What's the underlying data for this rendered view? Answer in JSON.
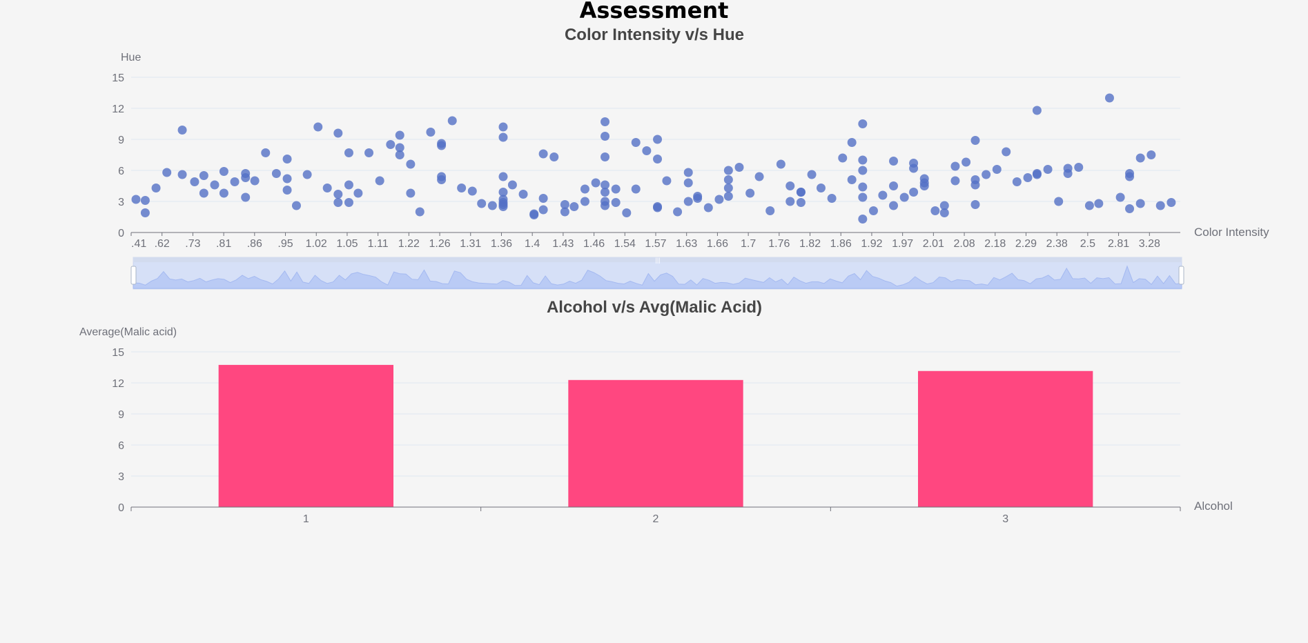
{
  "page": {
    "title": "Assessment"
  },
  "colors": {
    "scatter": "#5470c6",
    "bar": "#ff4780",
    "axis": "#6e7079",
    "grid": "#e0e6f1",
    "title": "#464646"
  },
  "chart_data": [
    {
      "type": "scatter",
      "title": "Color Intensity v/s Hue",
      "xlabel": "Color Intensity",
      "ylabel": "Hue",
      "ylim": [
        0,
        15
      ],
      "yticks": [
        "0",
        "3",
        "6",
        "9",
        "12",
        "15"
      ],
      "x_axis_type": "category",
      "x_tick_labels": [
        ".41",
        ".62",
        ".73",
        ".81",
        ".86",
        ".95",
        "1.02",
        "1.05",
        "1.11",
        "1.22",
        "1.26",
        "1.31",
        "1.36",
        "1.4",
        "1.43",
        "1.46",
        "1.54",
        "1.57",
        "1.63",
        "1.66",
        "1.7",
        "1.76",
        "1.82",
        "1.86",
        "1.92",
        "1.97",
        "2.01",
        "2.08",
        "2.18",
        "2.29",
        "2.38",
        "2.5",
        "2.81",
        "3.28"
      ],
      "grid": true,
      "data_zoom": {
        "start": 0,
        "end": 100
      },
      "points": [
        [
          0.0,
          3.2
        ],
        [
          0.3,
          3.1
        ],
        [
          0.3,
          1.9
        ],
        [
          0.65,
          4.3
        ],
        [
          1.0,
          5.8
        ],
        [
          1.5,
          9.9
        ],
        [
          1.5,
          5.6
        ],
        [
          1.9,
          4.9
        ],
        [
          2.2,
          5.5
        ],
        [
          2.2,
          3.8
        ],
        [
          2.55,
          4.6
        ],
        [
          2.85,
          5.9
        ],
        [
          2.85,
          3.8
        ],
        [
          3.2,
          4.9
        ],
        [
          3.55,
          5.7
        ],
        [
          3.55,
          5.3
        ],
        [
          3.55,
          3.4
        ],
        [
          3.85,
          5.0
        ],
        [
          4.2,
          7.7
        ],
        [
          4.55,
          5.7
        ],
        [
          4.9,
          7.1
        ],
        [
          4.9,
          5.2
        ],
        [
          4.9,
          4.1
        ],
        [
          5.2,
          2.6
        ],
        [
          5.55,
          5.6
        ],
        [
          5.9,
          10.2
        ],
        [
          6.2,
          4.3
        ],
        [
          6.55,
          9.6
        ],
        [
          6.55,
          3.7
        ],
        [
          6.55,
          2.9
        ],
        [
          6.9,
          7.7
        ],
        [
          6.9,
          4.6
        ],
        [
          6.9,
          2.9
        ],
        [
          7.2,
          3.8
        ],
        [
          7.55,
          7.7
        ],
        [
          7.9,
          5.0
        ],
        [
          8.25,
          8.5
        ],
        [
          8.55,
          9.4
        ],
        [
          8.55,
          8.2
        ],
        [
          8.55,
          7.5
        ],
        [
          8.9,
          6.6
        ],
        [
          8.9,
          3.8
        ],
        [
          9.2,
          2.0
        ],
        [
          9.55,
          9.7
        ],
        [
          9.9,
          8.6
        ],
        [
          9.9,
          8.4
        ],
        [
          9.9,
          5.4
        ],
        [
          9.9,
          5.1
        ],
        [
          10.25,
          10.8
        ],
        [
          10.55,
          4.3
        ],
        [
          10.9,
          4.0
        ],
        [
          11.2,
          2.8
        ],
        [
          11.55,
          2.6
        ],
        [
          11.9,
          10.2
        ],
        [
          11.9,
          9.2
        ],
        [
          11.9,
          5.4
        ],
        [
          11.9,
          3.9
        ],
        [
          11.9,
          3.2
        ],
        [
          11.9,
          2.9
        ],
        [
          11.9,
          2.7
        ],
        [
          11.9,
          2.5
        ],
        [
          12.2,
          4.6
        ],
        [
          12.55,
          3.7
        ],
        [
          12.9,
          1.7
        ],
        [
          12.9,
          1.8
        ],
        [
          13.2,
          7.6
        ],
        [
          13.2,
          3.3
        ],
        [
          13.2,
          2.2
        ],
        [
          13.55,
          7.3
        ],
        [
          13.9,
          2.7
        ],
        [
          13.9,
          2.0
        ],
        [
          14.2,
          2.5
        ],
        [
          14.55,
          4.2
        ],
        [
          14.55,
          3.0
        ],
        [
          14.9,
          4.8
        ],
        [
          15.2,
          10.7
        ],
        [
          15.2,
          9.3
        ],
        [
          15.2,
          7.3
        ],
        [
          15.2,
          4.6
        ],
        [
          15.2,
          3.9
        ],
        [
          15.2,
          3.0
        ],
        [
          15.2,
          2.6
        ],
        [
          15.55,
          4.2
        ],
        [
          15.55,
          2.9
        ],
        [
          15.9,
          1.9
        ],
        [
          16.2,
          8.7
        ],
        [
          16.2,
          4.2
        ],
        [
          16.55,
          7.9
        ],
        [
          16.9,
          9.0
        ],
        [
          16.9,
          7.1
        ],
        [
          16.9,
          2.5
        ],
        [
          16.9,
          2.4
        ],
        [
          17.2,
          5.0
        ],
        [
          17.55,
          2.0
        ],
        [
          17.9,
          5.8
        ],
        [
          17.9,
          4.8
        ],
        [
          17.9,
          3.0
        ],
        [
          18.2,
          3.5
        ],
        [
          18.2,
          3.3
        ],
        [
          18.55,
          2.4
        ],
        [
          18.9,
          3.2
        ],
        [
          19.2,
          6.0
        ],
        [
          19.2,
          5.1
        ],
        [
          19.2,
          4.3
        ],
        [
          19.2,
          3.5
        ],
        [
          19.55,
          6.3
        ],
        [
          19.9,
          3.8
        ],
        [
          20.2,
          5.4
        ],
        [
          20.55,
          2.1
        ],
        [
          20.9,
          6.6
        ],
        [
          21.2,
          4.5
        ],
        [
          21.2,
          3.0
        ],
        [
          21.55,
          3.9
        ],
        [
          21.55,
          3.9
        ],
        [
          21.55,
          2.9
        ],
        [
          21.9,
          5.6
        ],
        [
          22.2,
          4.3
        ],
        [
          22.55,
          3.3
        ],
        [
          22.9,
          7.2
        ],
        [
          23.2,
          8.7
        ],
        [
          23.2,
          5.1
        ],
        [
          23.55,
          10.5
        ],
        [
          23.55,
          7.0
        ],
        [
          23.55,
          6.0
        ],
        [
          23.55,
          4.4
        ],
        [
          23.55,
          3.4
        ],
        [
          23.55,
          1.3
        ],
        [
          23.9,
          2.1
        ],
        [
          24.2,
          3.6
        ],
        [
          24.55,
          6.9
        ],
        [
          24.55,
          4.5
        ],
        [
          24.55,
          2.6
        ],
        [
          24.9,
          3.4
        ],
        [
          25.2,
          6.7
        ],
        [
          25.2,
          6.2
        ],
        [
          25.2,
          3.9
        ],
        [
          25.55,
          5.2
        ],
        [
          25.55,
          4.8
        ],
        [
          25.55,
          4.5
        ],
        [
          25.9,
          2.1
        ],
        [
          26.2,
          2.6
        ],
        [
          26.2,
          1.9
        ],
        [
          26.55,
          6.4
        ],
        [
          26.55,
          5.0
        ],
        [
          26.9,
          6.8
        ],
        [
          27.2,
          8.9
        ],
        [
          27.2,
          5.1
        ],
        [
          27.2,
          4.6
        ],
        [
          27.2,
          2.7
        ],
        [
          27.55,
          5.6
        ],
        [
          27.9,
          6.1
        ],
        [
          28.2,
          7.8
        ],
        [
          28.55,
          4.9
        ],
        [
          28.9,
          5.3
        ],
        [
          29.2,
          11.8
        ],
        [
          29.2,
          5.7
        ],
        [
          29.2,
          5.6
        ],
        [
          29.55,
          6.1
        ],
        [
          29.9,
          3.0
        ],
        [
          30.2,
          6.2
        ],
        [
          30.2,
          5.7
        ],
        [
          30.55,
          6.3
        ],
        [
          30.9,
          2.6
        ],
        [
          31.2,
          2.8
        ],
        [
          31.55,
          13.0
        ],
        [
          31.9,
          3.4
        ],
        [
          32.2,
          5.7
        ],
        [
          32.2,
          5.4
        ],
        [
          32.2,
          2.3
        ],
        [
          32.55,
          7.2
        ],
        [
          32.55,
          2.8
        ],
        [
          32.9,
          7.5
        ],
        [
          33.2,
          2.6
        ],
        [
          33.55,
          2.9
        ]
      ]
    },
    {
      "type": "bar",
      "title": "Alcohol v/s Avg(Malic Acid)",
      "xlabel": "Alcohol",
      "ylabel": "Average(Malic acid)",
      "categories": [
        "1",
        "2",
        "3"
      ],
      "values": [
        13.74,
        12.28,
        13.15
      ],
      "ylim": [
        0,
        15
      ],
      "yticks": [
        "0",
        "3",
        "6",
        "9",
        "12",
        "15"
      ],
      "grid": true
    }
  ]
}
